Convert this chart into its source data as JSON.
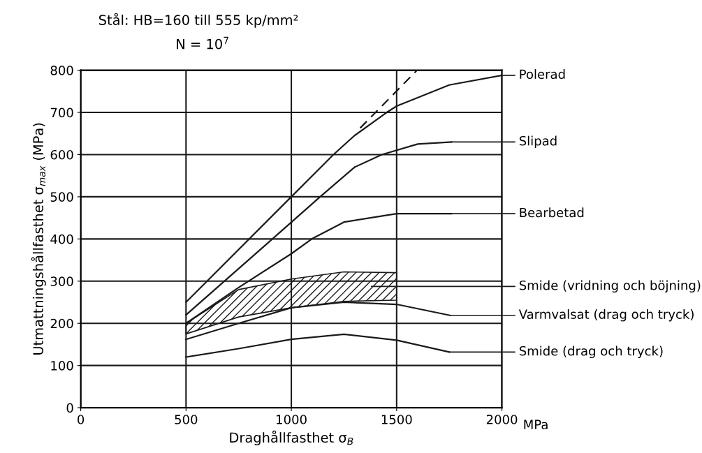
{
  "chart_data": {
    "type": "line",
    "title": "Stål: HB=160 till 555 kp/mm²",
    "subtitle": "N = 10$^{7}$",
    "xlabel": "Draghållfasthet σ$_{B}$",
    "ylabel": "Utmattningshållfasthet σ$_{max}$ (MPa)",
    "annotations": [
      "MPa"
    ],
    "xlim": [
      0,
      2000
    ],
    "xticks": [
      0,
      500,
      1000,
      1500,
      2000
    ],
    "ylim": [
      0,
      800
    ],
    "yticks": [
      0,
      100,
      200,
      300,
      400,
      500,
      600,
      700,
      800
    ],
    "grid": true,
    "series": [
      {
        "name": "Polerad",
        "color": "#1a1a1a",
        "x": [
          500,
          1000,
          1200,
          1300,
          1453,
          1500,
          1750,
          2000
        ],
        "values": [
          250,
          500,
          600,
          645,
          700,
          715,
          765,
          788
        ]
      },
      {
        "color": "#1a1a1a",
        "line_style": "dashed",
        "x": [
          1327,
          1597
        ],
        "values": [
          663,
          800
        ]
      },
      {
        "name": "Slipad",
        "color": "#1a1a1a",
        "x": [
          500,
          910,
          1137,
          1300,
          1430,
          1600,
          1760
        ],
        "values": [
          220,
          400,
          500,
          570,
          600,
          625,
          630
        ]
      },
      {
        "name": "Bearbetad",
        "color": "#1a1a1a",
        "x": [
          500,
          750,
          1000,
          1097,
          1250,
          1500,
          1760
        ],
        "values": [
          200,
          285,
          365,
          400,
          440,
          460,
          460
        ]
      },
      {
        "name": "Smide (vridning och böjning)",
        "type": "area",
        "color": "#1a1a1a",
        "x": [
          500,
          750,
          1000,
          1250,
          1500
        ],
        "values": [
          null,
          null,
          null,
          null,
          null
        ],
        "upper": [
          200,
          280,
          305,
          322,
          320
        ],
        "lower": [
          175,
          215,
          237,
          252,
          255
        ]
      },
      {
        "name": "Varmvalsat (drag och tryck)",
        "color": "#1a1a1a",
        "x": [
          500,
          750,
          1000,
          1250,
          1500,
          1753
        ],
        "values": [
          162,
          200,
          237,
          250,
          245,
          219
        ]
      },
      {
        "name": "Smide (drag och tryck)",
        "color": "#1a1a1a",
        "x": [
          500,
          750,
          1000,
          1250,
          1500,
          1750
        ],
        "values": [
          120,
          140,
          162,
          174,
          160,
          132
        ]
      }
    ]
  }
}
